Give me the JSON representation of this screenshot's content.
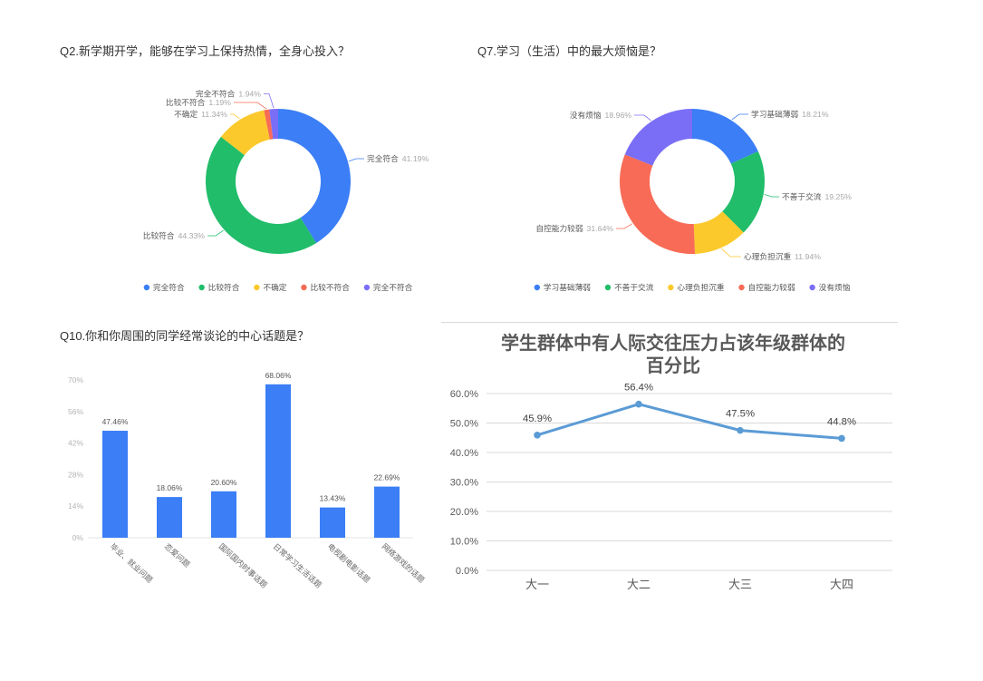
{
  "chart_data": [
    {
      "type": "pie",
      "donut": true,
      "title": "Q2.新学期开学，能够在学习上保持热情，全身心投入？",
      "categories": [
        "完全符合",
        "比较符合",
        "不确定",
        "比较不符合",
        "完全不符合"
      ],
      "values": [
        41.19,
        44.33,
        11.34,
        1.19,
        1.94
      ],
      "data_labels": [
        "41.19%",
        "44.33%",
        "11.34%",
        "1.19%",
        "1.94%"
      ],
      "colors": [
        "#3b7ef6",
        "#21bd6a",
        "#fbc92c",
        "#f86b56",
        "#7b6ef6"
      ],
      "legend": "bottom"
    },
    {
      "type": "pie",
      "donut": true,
      "title": "Q7.学习（生活）中的最大烦恼是？",
      "categories": [
        "学习基础薄弱",
        "不善于交流",
        "心理负担沉重",
        "自控能力较弱",
        "没有烦恼"
      ],
      "values": [
        18.21,
        19.25,
        11.94,
        31.64,
        18.96
      ],
      "data_labels": [
        "18.21%",
        "19.25%",
        "11.94%",
        "31.64%",
        "18.96%"
      ],
      "colors": [
        "#3b7ef6",
        "#21bd6a",
        "#fbc92c",
        "#f86b56",
        "#7b6ef6"
      ],
      "legend": "bottom"
    },
    {
      "type": "bar",
      "title": "Q10.你和你周围的同学经常谈论的中心话题是？",
      "categories": [
        "毕业、就业问题",
        "恋爱问题",
        "国际国内时事话题",
        "日常学习生活话题",
        "电视剧电影话题",
        "网络游戏的话题"
      ],
      "values": [
        47.46,
        18.06,
        20.6,
        68.06,
        13.43,
        22.69
      ],
      "data_labels": [
        "47.46%",
        "18.06%",
        "20.60%",
        "68.06%",
        "13.43%",
        "22.69%"
      ],
      "ylim": [
        0,
        70
      ],
      "yticks": [
        0,
        14,
        28,
        42,
        56,
        70
      ],
      "ytick_labels": [
        "0%",
        "14%",
        "28%",
        "42%",
        "56%",
        "70%"
      ],
      "color": "#3b7ef6",
      "grid": false,
      "legend": "none"
    },
    {
      "type": "line",
      "title": "学生群体中有人际交往压力占该年级群体的百分比",
      "categories": [
        "大一",
        "大二",
        "大三",
        "大四"
      ],
      "values": [
        45.9,
        56.4,
        47.5,
        44.8
      ],
      "data_labels": [
        "45.9%",
        "56.4%",
        "47.5%",
        "44.8%"
      ],
      "ylim": [
        0,
        60
      ],
      "yticks": [
        0,
        10,
        20,
        30,
        40,
        50,
        60
      ],
      "ytick_labels": [
        "0.0%",
        "10.0%",
        "20.0%",
        "30.0%",
        "40.0%",
        "50.0%",
        "60.0%"
      ],
      "color": "#5b9bd5",
      "grid": true,
      "legend": "none"
    }
  ]
}
